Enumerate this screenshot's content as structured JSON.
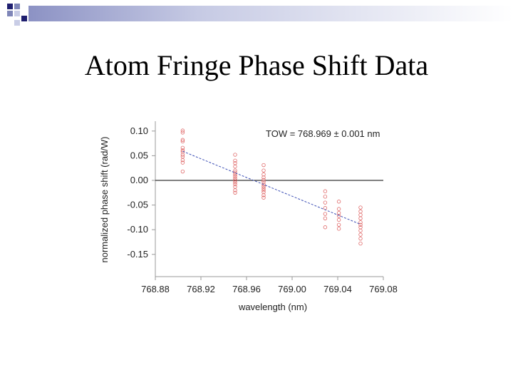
{
  "slide": {
    "title": "Atom Fringe Phase Shift Data"
  },
  "colors": {
    "deco_dark": "#1f1f6f",
    "deco_mid": "#7f86b8",
    "deco_light": "#c9cde6",
    "points": "#e06a6a",
    "fit": "#3c4fb5",
    "axis": "#999999"
  },
  "chart_data": {
    "type": "scatter",
    "title": "",
    "annotation": "TOW = 768.969 ± 0.001 nm",
    "xlabel": "wavelength (nm)",
    "ylabel": "normalized phase shift (rad/W)",
    "xlim": [
      768.88,
      769.08
    ],
    "ylim": [
      -0.2,
      0.12
    ],
    "x_ticks": [
      "768.88",
      "768.92",
      "768.96",
      "769.00",
      "769.04",
      "769.08"
    ],
    "y_ticks": [
      "0.10",
      "0.05",
      "0.00",
      "-0.05",
      "-0.10",
      "-0.15"
    ],
    "zero_line": true,
    "fit_line": {
      "x": [
        768.904,
        769.06
      ],
      "y": [
        0.059,
        -0.089
      ]
    },
    "series": [
      {
        "points": [
          [
            768.904,
            0.101
          ],
          [
            768.904,
            0.097
          ],
          [
            768.904,
            0.082
          ],
          [
            768.904,
            0.079
          ],
          [
            768.904,
            0.066
          ],
          [
            768.904,
            0.061
          ],
          [
            768.904,
            0.058
          ],
          [
            768.904,
            0.052
          ],
          [
            768.904,
            0.048
          ],
          [
            768.904,
            0.041
          ],
          [
            768.904,
            0.036
          ],
          [
            768.904,
            0.018
          ],
          [
            768.95,
            0.052
          ],
          [
            768.95,
            0.04
          ],
          [
            768.95,
            0.035
          ],
          [
            768.95,
            0.028
          ],
          [
            768.95,
            0.02
          ],
          [
            768.95,
            0.016
          ],
          [
            768.95,
            0.012
          ],
          [
            768.95,
            0.008
          ],
          [
            768.95,
            0.004
          ],
          [
            768.95,
            0.0
          ],
          [
            768.95,
            -0.004
          ],
          [
            768.95,
            -0.008
          ],
          [
            768.95,
            -0.013
          ],
          [
            768.95,
            -0.02
          ],
          [
            768.95,
            -0.025
          ],
          [
            768.975,
            0.031
          ],
          [
            768.975,
            0.02
          ],
          [
            768.975,
            0.012
          ],
          [
            768.975,
            0.006
          ],
          [
            768.975,
            0.001
          ],
          [
            768.975,
            -0.003
          ],
          [
            768.975,
            -0.008
          ],
          [
            768.975,
            -0.012
          ],
          [
            768.975,
            -0.016
          ],
          [
            768.975,
            -0.02
          ],
          [
            768.975,
            -0.024
          ],
          [
            768.975,
            -0.03
          ],
          [
            768.975,
            -0.035
          ],
          [
            769.029,
            -0.022
          ],
          [
            769.029,
            -0.033
          ],
          [
            769.029,
            -0.045
          ],
          [
            769.029,
            -0.056
          ],
          [
            769.029,
            -0.068
          ],
          [
            769.029,
            -0.077
          ],
          [
            769.029,
            -0.095
          ],
          [
            769.041,
            -0.043
          ],
          [
            769.041,
            -0.058
          ],
          [
            769.041,
            -0.066
          ],
          [
            769.041,
            -0.072
          ],
          [
            769.041,
            -0.08
          ],
          [
            769.041,
            -0.09
          ],
          [
            769.041,
            -0.098
          ],
          [
            769.06,
            -0.055
          ],
          [
            769.06,
            -0.063
          ],
          [
            769.06,
            -0.07
          ],
          [
            769.06,
            -0.077
          ],
          [
            769.06,
            -0.085
          ],
          [
            769.06,
            -0.09
          ],
          [
            769.06,
            -0.095
          ],
          [
            769.06,
            -0.102
          ],
          [
            769.06,
            -0.11
          ],
          [
            769.06,
            -0.118
          ],
          [
            769.06,
            -0.128
          ]
        ]
      }
    ]
  }
}
